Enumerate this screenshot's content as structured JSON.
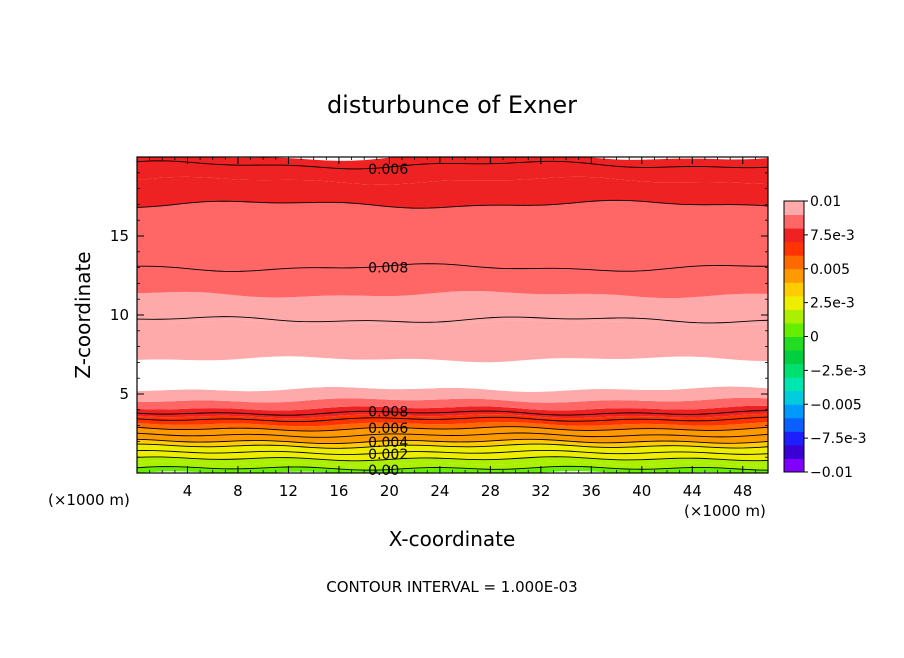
{
  "chart_data": {
    "type": "heatmap",
    "subtype": "filled-contour",
    "title": "disturbunce of Exner",
    "xlabel": "X-coordinate",
    "ylabel": "Z-coordinate",
    "x_unit_left": "(×1000 m)",
    "x_unit_right": "(×1000 m)",
    "footer": "CONTOUR INTERVAL = 1.000E-03",
    "xlim": [
      0,
      50
    ],
    "ylim": [
      0,
      20
    ],
    "x_ticks": [
      4,
      8,
      12,
      16,
      20,
      24,
      28,
      32,
      36,
      40,
      44,
      48
    ],
    "x_tick_labels": [
      "4",
      "8",
      "12",
      "16",
      "20",
      "24",
      "28",
      "32",
      "36",
      "40",
      "44",
      "48"
    ],
    "y_ticks": [
      5,
      10,
      15
    ],
    "y_tick_labels": [
      "5",
      "10",
      "15"
    ],
    "colorbar": {
      "min": -0.01,
      "max": 0.01,
      "levels": 20,
      "colors": [
        "#7f00ff",
        "#3b00d4",
        "#1e1eff",
        "#0a5fff",
        "#0099ff",
        "#00ccdd",
        "#00e6b0",
        "#00e070",
        "#00d040",
        "#22dd22",
        "#66ee00",
        "#aaf000",
        "#eeee00",
        "#ffcc00",
        "#ff9900",
        "#ff6a00",
        "#ff3300",
        "#ee2222",
        "#ff6666",
        "#ffaaaa"
      ],
      "tick_values": [
        0.01,
        0.0075,
        0.005,
        0.0025,
        0,
        -0.0025,
        -0.005,
        -0.0075,
        -0.01
      ],
      "tick_labels": [
        "0.01",
        "7.5e-3",
        "0.005",
        "2.5e-3",
        "0",
        "−2.5e-3",
        "−0.005",
        "−7.5e-3",
        "−0.01"
      ]
    },
    "bands": [
      {
        "z0": 0.0,
        "z1": 0.3,
        "value": 0.0005
      },
      {
        "z0": 0.3,
        "z1": 0.6,
        "value": 0.0011
      },
      {
        "z0": 0.6,
        "z1": 0.9,
        "value": 0.0015
      },
      {
        "z0": 0.9,
        "z1": 1.3,
        "value": 0.002
      },
      {
        "z0": 1.3,
        "z1": 1.7,
        "value": 0.0028
      },
      {
        "z0": 1.7,
        "z1": 2.0,
        "value": 0.0035
      },
      {
        "z0": 2.0,
        "z1": 2.4,
        "value": 0.004
      },
      {
        "z0": 2.4,
        "z1": 2.8,
        "value": 0.0048
      },
      {
        "z0": 2.8,
        "z1": 3.1,
        "value": 0.0055
      },
      {
        "z0": 3.1,
        "z1": 3.4,
        "value": 0.006
      },
      {
        "z0": 3.4,
        "z1": 3.6,
        "value": 0.0068
      },
      {
        "z0": 3.6,
        "z1": 3.8,
        "value": 0.0075
      },
      {
        "z0": 3.8,
        "z1": 4.1,
        "value": 0.0079
      },
      {
        "z0": 4.1,
        "z1": 4.6,
        "value": 0.0087
      },
      {
        "z0": 4.6,
        "z1": 5.3,
        "value": 0.0093
      },
      {
        "z0": 5.3,
        "z1": 7.2,
        "value": 0.0105
      },
      {
        "z0": 7.2,
        "z1": 9.5,
        "value": 0.0097
      },
      {
        "z0": 9.5,
        "z1": 11.3,
        "value": 0.0092
      },
      {
        "z0": 11.3,
        "z1": 13.0,
        "value": 0.0087
      },
      {
        "z0": 13.0,
        "z1": 17.0,
        "value": 0.0083
      },
      {
        "z0": 17.0,
        "z1": 18.5,
        "value": 0.0078
      },
      {
        "z0": 18.5,
        "z1": 20.0,
        "value": 0.0072
      }
    ],
    "contours": [
      {
        "z": 0.3,
        "value": 0.0,
        "label": "0.00",
        "label_x": 18
      },
      {
        "z": 0.9,
        "value": 0.001,
        "label": "",
        "label_x": null
      },
      {
        "z": 1.3,
        "value": 0.002,
        "label": "0.002",
        "label_x": 18
      },
      {
        "z": 1.7,
        "value": 0.003,
        "label": "",
        "label_x": null
      },
      {
        "z": 2.0,
        "value": 0.004,
        "label": "0.004",
        "label_x": 18
      },
      {
        "z": 2.4,
        "value": 0.005,
        "label": "",
        "label_x": null
      },
      {
        "z": 2.8,
        "value": 0.006,
        "label": "0.006",
        "label_x": 18
      },
      {
        "z": 3.4,
        "value": 0.007,
        "label": "",
        "label_x": null
      },
      {
        "z": 3.8,
        "value": 0.008,
        "label": "0.008",
        "label_x": 18
      },
      {
        "z": 9.7,
        "value": 0.009,
        "label": "",
        "label_x": null
      },
      {
        "z": 13.0,
        "value": 0.008,
        "label": "0.008",
        "label_x": 18
      },
      {
        "z": 17.0,
        "value": 0.007,
        "label": "",
        "label_x": null
      },
      {
        "z": 19.5,
        "value": 0.006,
        "label": "0.006",
        "label_x": 18
      }
    ]
  }
}
